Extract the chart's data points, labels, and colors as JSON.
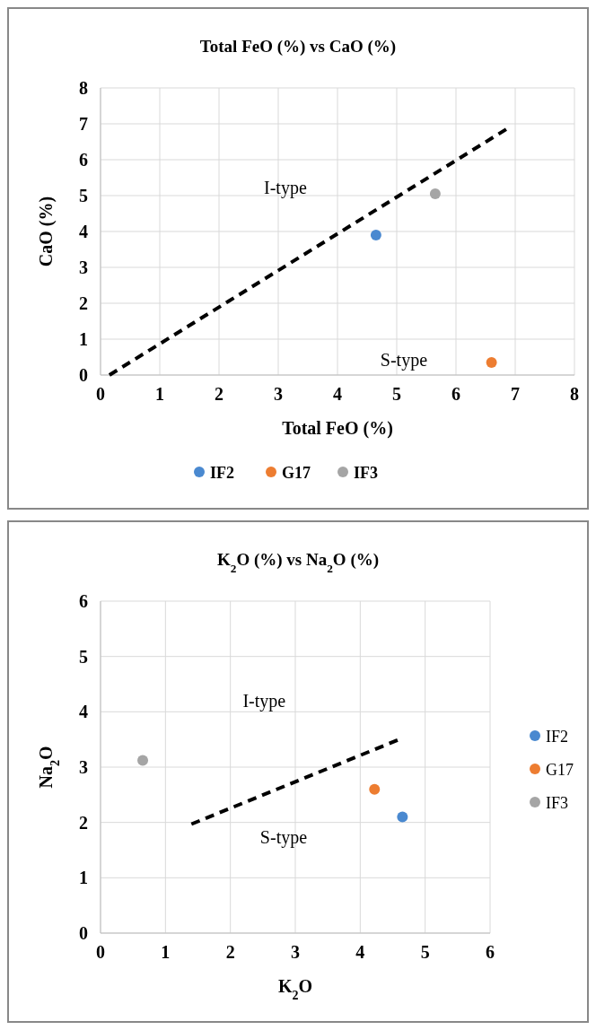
{
  "chart_data": [
    {
      "type": "scatter",
      "title": "Total FeO (%) vs CaO (%)",
      "xlabel": "Total FeO (%)",
      "ylabel": "CaO (%)",
      "xlim": [
        0,
        8
      ],
      "ylim": [
        0,
        8
      ],
      "xticks": [
        0,
        1,
        2,
        3,
        4,
        5,
        6,
        7,
        8
      ],
      "yticks": [
        0,
        1,
        2,
        3,
        4,
        5,
        6,
        7,
        8
      ],
      "grid": true,
      "legend": "bottom",
      "series": [
        {
          "name": "IF2",
          "color": "#4a89d0",
          "marker": "circle",
          "x": [
            4.65
          ],
          "values": [
            3.9
          ]
        },
        {
          "name": "G17",
          "color": "#ed7d31",
          "marker": "circle",
          "x": [
            6.6
          ],
          "values": [
            0.35
          ]
        },
        {
          "name": "IF3",
          "color": "#a5a5a5",
          "marker": "circle",
          "x": [
            5.65
          ],
          "values": [
            5.05
          ]
        },
        {
          "type": "line",
          "color": "#000000",
          "marker": "none",
          "line_style": "dashed",
          "x": [
            0.15,
            6.85
          ],
          "values": [
            0,
            6.85
          ]
        }
      ],
      "annotations": [
        "I-type",
        "S-type"
      ]
    },
    {
      "type": "scatter",
      "title": "K$_{2}$O (%) vs Na$_{2}$O (%)",
      "xlabel": "K$_{2}$O",
      "ylabel": "Na$_{2}$O",
      "xlim": [
        0,
        6
      ],
      "ylim": [
        0,
        6
      ],
      "xticks": [
        0,
        1,
        2,
        3,
        4,
        5,
        6
      ],
      "yticks": [
        0,
        1,
        2,
        3,
        4,
        5,
        6
      ],
      "grid": true,
      "legend": "right",
      "series": [
        {
          "name": "IF2",
          "color": "#4a89d0",
          "marker": "circle",
          "x": [
            4.65
          ],
          "values": [
            2.1
          ]
        },
        {
          "name": "G17",
          "color": "#ed7d31",
          "marker": "circle",
          "x": [
            4.22
          ],
          "values": [
            2.6
          ]
        },
        {
          "name": "IF3",
          "color": "#a5a5a5",
          "marker": "circle",
          "x": [
            0.65
          ],
          "values": [
            3.12
          ]
        },
        {
          "type": "line",
          "color": "#000000",
          "marker": "none",
          "line_style": "dashed",
          "x": [
            1.4,
            4.6
          ],
          "values": [
            1.97,
            3.5
          ]
        }
      ],
      "annotations": [
        "I-type",
        "S-type"
      ]
    }
  ]
}
